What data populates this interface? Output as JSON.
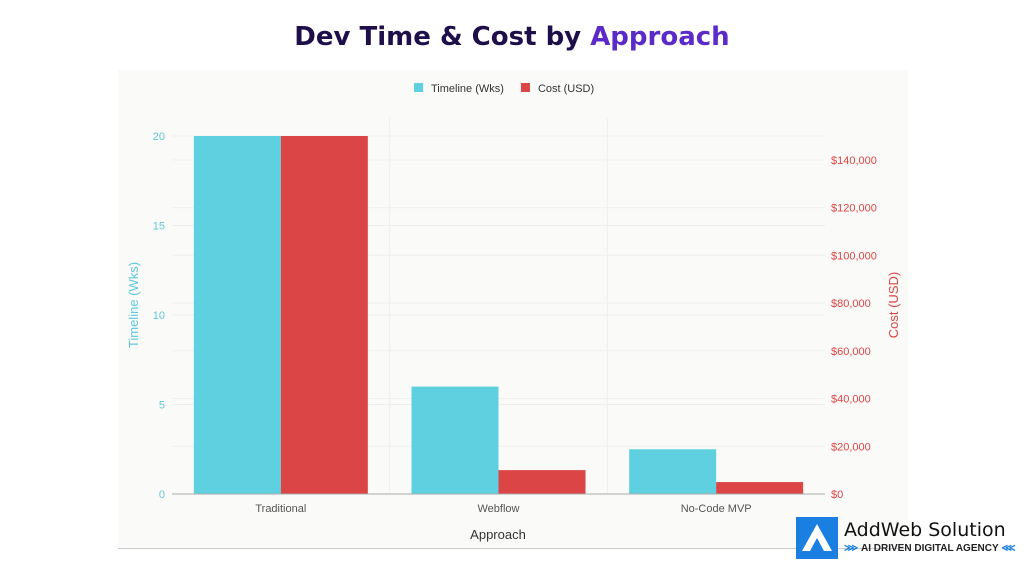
{
  "title_part1": "Dev Time & Cost by",
  "title_part2": "Approach",
  "chart_data": {
    "type": "bar",
    "title": "Dev Time & Cost by Approach",
    "categories": [
      "Traditional",
      "Webflow",
      "No-Code MVP"
    ],
    "xlabel": "Approach",
    "ylabel": "Timeline (Wks)",
    "y2label": "Cost (USD)",
    "ylim": [
      0,
      20
    ],
    "y2lim": [
      0,
      150000
    ],
    "yticks": [
      "0",
      "5",
      "10",
      "15",
      "20"
    ],
    "y2ticks": [
      "$0",
      "$20,000",
      "$40,000",
      "$60,000",
      "$80,000",
      "$100,000",
      "$120,000",
      "$140,000"
    ],
    "legend_position": "top-center",
    "grid": true,
    "series": [
      {
        "name": "Timeline (Wks)",
        "axis": "left",
        "color": "#5fd0e0",
        "values": [
          20,
          6,
          2.5
        ]
      },
      {
        "name": "Cost (USD)",
        "axis": "right",
        "color": "#db4545",
        "values": [
          150000,
          10000,
          5000
        ]
      }
    ]
  },
  "logo": {
    "name": "AddWeb Solution",
    "tagline": "AI DRIVEN DIGITAL AGENCY"
  }
}
